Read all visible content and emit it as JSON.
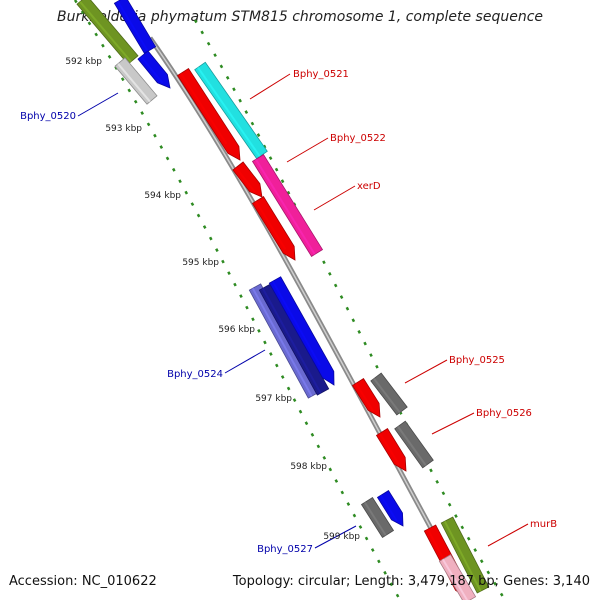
{
  "title": "Burkholderia phymatum STM815 chromosome 1, complete sequence",
  "footer": {
    "accession": "Accession: NC_010622",
    "summary": "Topology: circular; Length: 3,479,187 bp; Genes: 3,140"
  },
  "colors": {
    "backbone": "#8a8a8a",
    "tick_dots": "#2e8b22",
    "label_red": "#cc0000",
    "label_blue": "#0000aa",
    "cog_red": "#f00000",
    "cog_cyan": "#22e0e0",
    "cog_magenta": "#f0209a",
    "cog_blue": "#0a0ae8",
    "cog_darkblue": "#1a1a8c",
    "cog_slate": "#6a6ad0",
    "cog_gray": "#6a6a6a",
    "cog_olive": "#6e9422",
    "cog_lightgray": "#c8c8c8"
  },
  "ruler": [
    "592 kbp",
    "593 kbp",
    "594 kbp",
    "595 kbp",
    "596 kbp",
    "597 kbp",
    "598 kbp",
    "599 kbp"
  ],
  "gene_labels": [
    "Bphy_0520",
    "Bphy_0521",
    "Bphy_0522",
    "xerD",
    "Bphy_0524",
    "Bphy_0525",
    "Bphy_0526",
    "Bphy_0527",
    "murB"
  ]
}
